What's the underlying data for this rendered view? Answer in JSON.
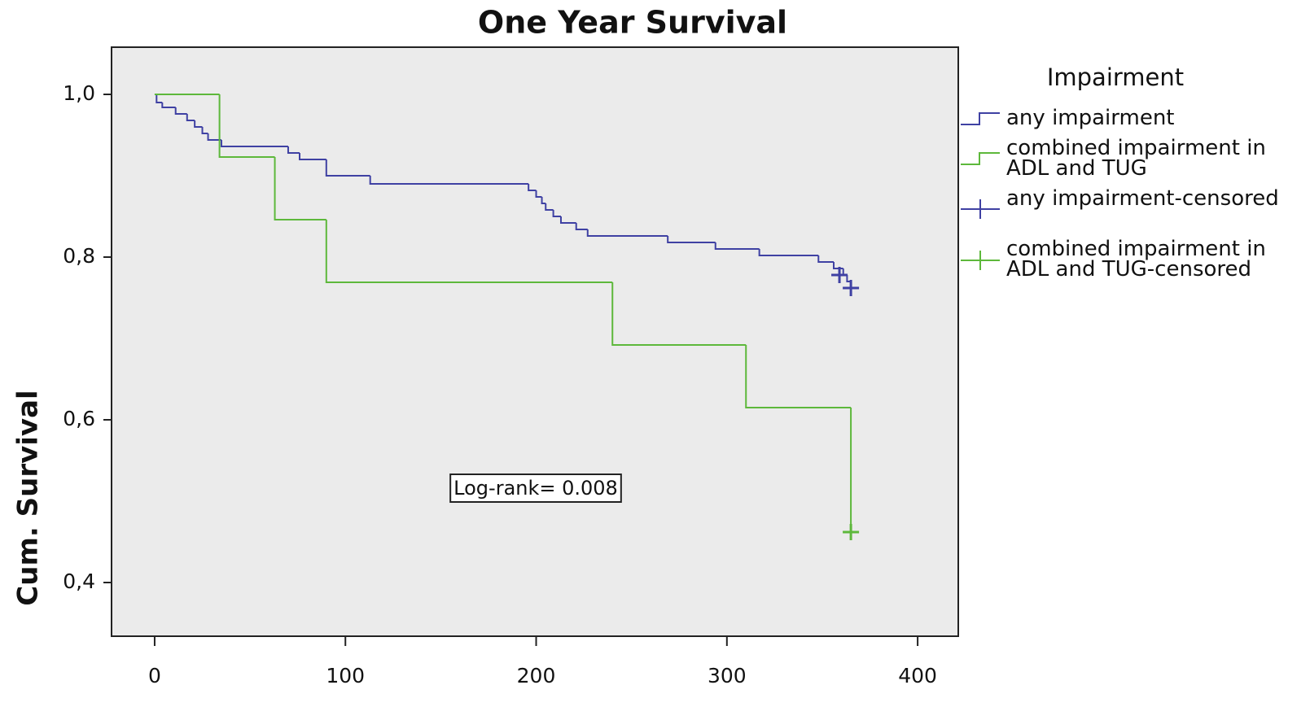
{
  "chart_data": {
    "type": "step",
    "title": "One Year Survival",
    "y_label": "Cum. Survival",
    "legend_title": "Impairment",
    "annotation": "Log-rank= 0.008",
    "xlim": [
      -22.6,
      421.3
    ],
    "ylim": [
      0.334,
      1.058
    ],
    "xticks": [
      0,
      100,
      200,
      300,
      400
    ],
    "yticks": [
      {
        "value": 1.0,
        "label": "1,0"
      },
      {
        "value": 0.8,
        "label": "0,8"
      },
      {
        "value": 0.6,
        "label": "0,6"
      },
      {
        "value": 0.4,
        "label": "0,4"
      }
    ],
    "background": "#ebebeb",
    "series": [
      {
        "name": "any impairment",
        "color": "#3f41a3",
        "style": "step",
        "x": [
          0,
          1,
          4,
          11,
          17,
          21,
          25,
          28,
          35,
          70,
          76,
          90,
          113,
          196,
          200,
          203,
          205,
          209,
          213,
          221,
          227,
          269,
          294,
          317,
          348,
          356,
          361,
          363,
          365
        ],
        "values": [
          1.0,
          0.99,
          0.984,
          0.976,
          0.968,
          0.96,
          0.952,
          0.944,
          0.936,
          0.928,
          0.92,
          0.9,
          0.89,
          0.882,
          0.874,
          0.866,
          0.858,
          0.85,
          0.842,
          0.834,
          0.826,
          0.818,
          0.81,
          0.802,
          0.794,
          0.786,
          0.778,
          0.77,
          0.762
        ]
      },
      {
        "name": "combined impairment in ADL and TUG",
        "color": "#5db83b",
        "style": "step",
        "x": [
          0,
          34,
          63,
          90,
          240,
          310,
          365
        ],
        "values": [
          1.0,
          0.923,
          0.846,
          0.769,
          0.692,
          0.615,
          0.462
        ]
      },
      {
        "name": "any impairment-censored",
        "color": "#3f41a3",
        "style": "censor",
        "x": [
          359,
          365
        ],
        "values": [
          0.778,
          0.762
        ]
      },
      {
        "name": "combined impairment in ADL and TUG-censored",
        "color": "#5db83b",
        "style": "censor",
        "x": [
          365
        ],
        "values": [
          0.462
        ]
      }
    ]
  }
}
